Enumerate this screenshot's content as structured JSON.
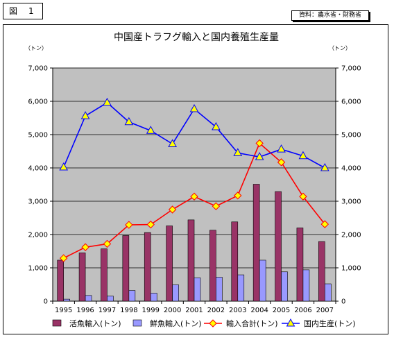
{
  "figure_label": "図　1",
  "source_note": "資料：農水省・財務省",
  "chart_data": {
    "type": "bar",
    "title": "中国産トラフグ輸入と国内養殖生産量",
    "ylabel_left": "（トン）",
    "ylabel_right": "（トン）",
    "ylim": [
      0,
      7000
    ],
    "yticks": [
      0,
      1000,
      2000,
      3000,
      4000,
      5000,
      6000,
      7000
    ],
    "ytick_labels": [
      "0",
      "1,000",
      "2,000",
      "3,000",
      "4,000",
      "5,000",
      "6,000",
      "7,000"
    ],
    "categories": [
      "1995",
      "1996",
      "1997",
      "1998",
      "1999",
      "2000",
      "2001",
      "2002",
      "2003",
      "2004",
      "2005",
      "2006",
      "2007"
    ],
    "grid": true,
    "legend_position": "bottom",
    "plot_background": "#c0c0c0",
    "series": [
      {
        "name": "活魚輸入(トン)",
        "type": "bar",
        "color": "#993366",
        "values": [
          1230,
          1450,
          1570,
          1970,
          2060,
          2260,
          2440,
          2130,
          2380,
          3510,
          3290,
          2200,
          1790
        ]
      },
      {
        "name": "鮮魚輸入(トン)",
        "type": "bar",
        "color": "#9999ff",
        "values": [
          60,
          170,
          150,
          320,
          240,
          490,
          700,
          720,
          790,
          1230,
          880,
          940,
          520
        ]
      },
      {
        "name": "輸入合計(トン)",
        "type": "line",
        "color": "#ff0000",
        "marker": "diamond",
        "marker_color": "#ffff00",
        "values": [
          1290,
          1620,
          1720,
          2290,
          2300,
          2750,
          3140,
          2850,
          3170,
          4740,
          4170,
          3140,
          2310
        ]
      },
      {
        "name": "国内生産(トン)",
        "type": "line",
        "color": "#0000ff",
        "marker": "triangle",
        "marker_color": "#ffff00",
        "values": [
          4020,
          5560,
          5960,
          5380,
          5120,
          4720,
          5770,
          5230,
          4450,
          4330,
          4560,
          4360,
          4000
        ]
      }
    ]
  }
}
